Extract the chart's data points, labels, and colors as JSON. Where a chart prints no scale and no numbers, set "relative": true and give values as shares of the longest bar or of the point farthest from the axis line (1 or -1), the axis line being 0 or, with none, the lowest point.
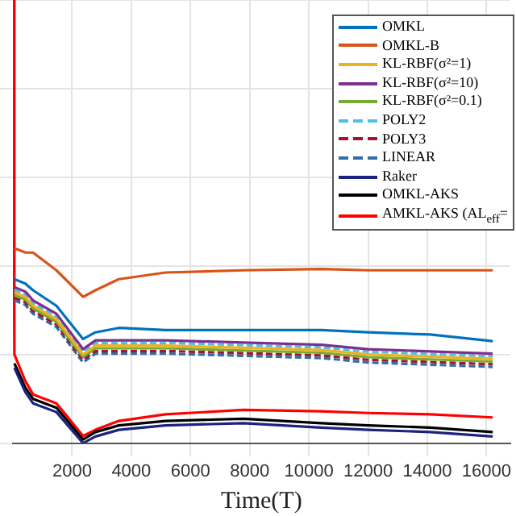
{
  "chart_data": {
    "type": "line",
    "relative": true,
    "xlabel": "Time(T)",
    "xlim": [
      0,
      16800
    ],
    "xticks": [
      2000,
      4000,
      6000,
      8000,
      10000,
      12000,
      14000,
      16000
    ],
    "grid": true,
    "legend": "top right",
    "tick_labels": "x",
    "line_style": "solid",
    "marker": "none",
    "x": [
      0,
      50,
      420,
      680,
      1470,
      2370,
      2790,
      3580,
      5160,
      7790,
      10420,
      12000,
      14100,
      16210
    ],
    "series": [
      {
        "name": "OMKL",
        "color": "#0072bd",
        "values": [
          null,
          0.37,
          0.36,
          0.345,
          0.31,
          0.235,
          0.25,
          0.26,
          0.255,
          0.255,
          0.255,
          0.25,
          0.245,
          0.23
        ]
      },
      {
        "name": "OMKL-B",
        "color": "#d95319",
        "values": [
          null,
          0.44,
          0.43,
          0.43,
          0.39,
          0.33,
          0.345,
          0.37,
          0.385,
          0.39,
          0.393,
          0.39,
          0.39,
          0.39
        ]
      },
      {
        "name": "KL-RBF(σ²=1)",
        "color": "#edb120",
        "values": [
          null,
          0.34,
          0.33,
          0.31,
          0.28,
          0.2,
          0.22,
          0.22,
          0.22,
          0.215,
          0.21,
          0.2,
          0.195,
          0.19
        ]
      },
      {
        "name": "KL-RBF(σ²=10)",
        "color": "#7e2f8e",
        "values": [
          null,
          0.352,
          0.342,
          0.322,
          0.292,
          0.212,
          0.232,
          0.232,
          0.232,
          0.227,
          0.222,
          0.212,
          0.207,
          0.202
        ]
      },
      {
        "name": "KL-RBF(σ²=0.1)",
        "color": "#77ac30",
        "values": [
          null,
          0.334,
          0.324,
          0.304,
          0.274,
          0.194,
          0.214,
          0.214,
          0.214,
          0.209,
          0.204,
          0.194,
          0.189,
          0.184
        ]
      },
      {
        "name": "POLY2",
        "color": "#4dbeee",
        "line_style": "dashed",
        "values": [
          null,
          0.346,
          0.336,
          0.316,
          0.286,
          0.206,
          0.226,
          0.226,
          0.226,
          0.221,
          0.216,
          0.206,
          0.201,
          0.196
        ]
      },
      {
        "name": "POLY3",
        "color": "#a2142f",
        "line_style": "dashed",
        "values": [
          null,
          0.328,
          0.318,
          0.298,
          0.268,
          0.188,
          0.208,
          0.208,
          0.208,
          0.203,
          0.198,
          0.188,
          0.183,
          0.178
        ]
      },
      {
        "name": "LINEAR",
        "color": "#2f6ea8",
        "line_style": "dashed",
        "values": [
          null,
          0.322,
          0.312,
          0.292,
          0.262,
          0.182,
          0.202,
          0.202,
          0.202,
          0.197,
          0.192,
          0.182,
          0.177,
          0.172
        ]
      },
      {
        "name": "Raker",
        "color": "#1a237e",
        "values": [
          null,
          0.17,
          0.115,
          0.09,
          0.07,
          0.0,
          0.015,
          0.03,
          0.04,
          0.045,
          0.035,
          0.03,
          0.025,
          0.015
        ]
      },
      {
        "name": "OMKL-AKS",
        "color": "#000000",
        "values": [
          null,
          0.18,
          0.125,
          0.1,
          0.08,
          0.008,
          0.025,
          0.04,
          0.05,
          0.055,
          0.045,
          0.04,
          0.035,
          0.025
        ]
      },
      {
        "name": "AMKL-AKS (AL$_{eff}$=",
        "color": "#ff0000",
        "values": [
          1,
          0.2,
          0.14,
          0.11,
          0.09,
          0.016,
          0.03,
          0.05,
          0.065,
          0.075,
          0.072,
          0.068,
          0.065,
          0.058
        ]
      }
    ]
  }
}
